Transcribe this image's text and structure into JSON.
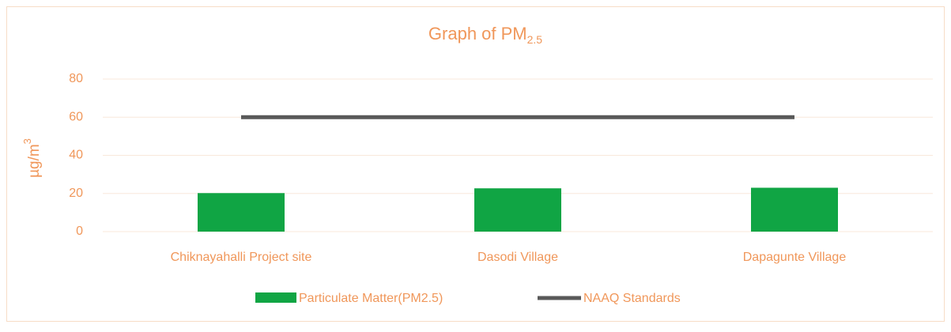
{
  "chart_data": {
    "type": "bar_line",
    "title": {
      "text": "Graph of PM",
      "subscript": "2.5"
    },
    "y_label": {
      "text": "µg/m",
      "superscript": "3"
    },
    "categories": [
      "Chiknayahalli Project site",
      "Dasodi Village",
      "Dapagunte Village"
    ],
    "series": [
      {
        "name": "Particulate Matter(PM2.5)",
        "type": "bar",
        "color": "#10a544",
        "values": [
          20.2,
          22.7,
          23.0
        ]
      },
      {
        "name": "NAAQ Standards",
        "type": "line",
        "color": "#595959",
        "values": [
          60,
          60,
          60
        ]
      }
    ],
    "ylim": [
      0,
      80
    ],
    "yticks": [
      0,
      20,
      40,
      60,
      80
    ],
    "grid": true,
    "legend": "bottom"
  }
}
